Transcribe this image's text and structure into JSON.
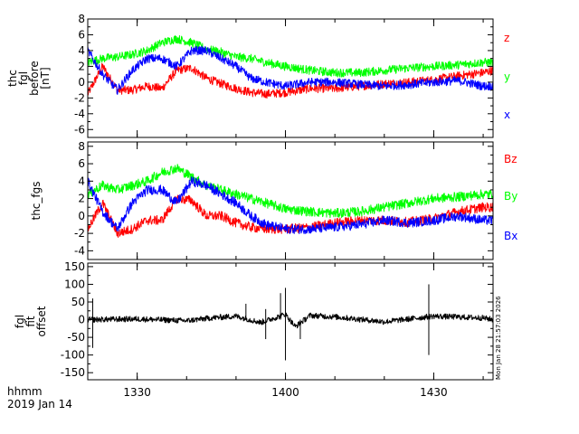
{
  "footer": {
    "line1": "hhmm",
    "line2": "2019 Jan 14"
  },
  "timestamp": "Mon Jan 28 21:57:03 2026",
  "colors": {
    "red": "#ff0000",
    "green": "#00ff00",
    "blue": "#0000ff",
    "black": "#000000"
  },
  "chart_data": [
    {
      "type": "line",
      "panel": 1,
      "ylabel_lines": [
        "thc",
        "fgl",
        "before",
        "[nT]"
      ],
      "ylim": [
        -7,
        8
      ],
      "yticks": [
        -6,
        -4,
        -2,
        0,
        2,
        4,
        6,
        8
      ],
      "xlim": [
        "13:20",
        "14:42"
      ],
      "xticks": [
        "1330",
        "1400",
        "1430"
      ],
      "series": [
        {
          "name": "z",
          "color": "#ff0000",
          "x": [
            "13:20",
            "13:23",
            "13:26",
            "13:29",
            "13:32",
            "13:35",
            "13:38",
            "13:41",
            "13:44",
            "13:47",
            "13:50",
            "13:53",
            "13:56",
            "14:00",
            "14:05",
            "14:10",
            "14:15",
            "14:20",
            "14:25",
            "14:30",
            "14:35",
            "14:40",
            "14:42"
          ],
          "values": [
            -1.5,
            2.0,
            -1.0,
            -1.0,
            -0.5,
            -0.8,
            1.5,
            1.8,
            0.5,
            -0.2,
            -0.8,
            -1.3,
            -1.5,
            -1.3,
            -0.8,
            -0.8,
            -0.5,
            -0.2,
            0.0,
            0.3,
            0.8,
            1.2,
            1.5
          ]
        },
        {
          "name": "y",
          "color": "#00ff00",
          "x": [
            "13:20",
            "13:23",
            "13:26",
            "13:29",
            "13:32",
            "13:35",
            "13:38",
            "13:41",
            "13:44",
            "13:47",
            "13:50",
            "13:53",
            "13:56",
            "14:00",
            "14:05",
            "14:10",
            "14:15",
            "14:20",
            "14:25",
            "14:30",
            "14:35",
            "14:40",
            "14:42"
          ],
          "values": [
            2.5,
            3.0,
            3.2,
            3.5,
            4.0,
            5.0,
            5.5,
            5.0,
            4.2,
            3.8,
            3.2,
            3.0,
            2.5,
            2.0,
            1.5,
            1.2,
            1.2,
            1.5,
            1.8,
            2.0,
            2.2,
            2.5,
            2.5
          ]
        },
        {
          "name": "x",
          "color": "#0000ff",
          "x": [
            "13:20",
            "13:23",
            "13:26",
            "13:29",
            "13:32",
            "13:35",
            "13:38",
            "13:41",
            "13:44",
            "13:47",
            "13:50",
            "13:53",
            "13:56",
            "14:00",
            "14:05",
            "14:10",
            "14:15",
            "14:20",
            "14:25",
            "14:30",
            "14:35",
            "14:40",
            "14:42"
          ],
          "values": [
            4.0,
            1.0,
            -1.0,
            1.5,
            3.0,
            3.0,
            2.0,
            4.0,
            4.0,
            3.0,
            2.0,
            0.5,
            0.0,
            -0.5,
            0.0,
            0.0,
            -0.3,
            -0.5,
            -0.3,
            0.0,
            0.2,
            -0.5,
            -0.5
          ]
        }
      ]
    },
    {
      "type": "line",
      "panel": 2,
      "ylabel_lines": [
        "thc_fgs"
      ],
      "ylim": [
        -5,
        8.5
      ],
      "yticks": [
        -4,
        -2,
        0,
        2,
        4,
        6,
        8
      ],
      "xlim": [
        "13:20",
        "14:42"
      ],
      "xticks": [
        "1330",
        "1400",
        "1430"
      ],
      "series": [
        {
          "name": "Bz",
          "color": "#ff0000",
          "x": [
            "13:20",
            "13:23",
            "13:26",
            "13:29",
            "13:32",
            "13:35",
            "13:38",
            "13:41",
            "13:44",
            "13:47",
            "13:50",
            "13:53",
            "13:56",
            "14:00",
            "14:05",
            "14:10",
            "14:15",
            "14:20",
            "14:25",
            "14:30",
            "14:35",
            "14:40",
            "14:42"
          ],
          "values": [
            -1.5,
            1.5,
            -2.0,
            -1.5,
            -0.5,
            -0.5,
            2.0,
            1.8,
            0.0,
            0.0,
            -0.8,
            -1.3,
            -1.5,
            -1.5,
            -1.3,
            -0.8,
            -0.5,
            -0.5,
            -0.7,
            -0.3,
            0.5,
            1.0,
            1.0
          ]
        },
        {
          "name": "By",
          "color": "#00ff00",
          "x": [
            "13:20",
            "13:23",
            "13:26",
            "13:29",
            "13:32",
            "13:35",
            "13:38",
            "13:41",
            "13:44",
            "13:47",
            "13:50",
            "13:53",
            "13:56",
            "14:00",
            "14:05",
            "14:10",
            "14:15",
            "14:20",
            "14:25",
            "14:30",
            "14:35",
            "14:40",
            "14:42"
          ],
          "values": [
            2.5,
            3.5,
            3.0,
            3.5,
            4.0,
            5.0,
            5.5,
            4.5,
            3.5,
            3.0,
            2.5,
            2.0,
            1.5,
            0.8,
            0.5,
            0.3,
            0.5,
            1.0,
            1.5,
            2.0,
            2.2,
            2.5,
            2.5
          ]
        },
        {
          "name": "Bx",
          "color": "#0000ff",
          "x": [
            "13:20",
            "13:23",
            "13:26",
            "13:29",
            "13:32",
            "13:35",
            "13:38",
            "13:41",
            "13:44",
            "13:47",
            "13:50",
            "13:53",
            "13:56",
            "14:00",
            "14:05",
            "14:10",
            "14:15",
            "14:20",
            "14:25",
            "14:30",
            "14:35",
            "14:40",
            "14:42"
          ],
          "values": [
            4.0,
            0.5,
            -1.5,
            1.5,
            3.0,
            3.0,
            1.5,
            4.0,
            3.5,
            2.5,
            1.5,
            0.0,
            -1.0,
            -1.5,
            -1.5,
            -1.3,
            -1.0,
            -0.5,
            -0.8,
            -0.5,
            0.0,
            -0.5,
            -0.5
          ]
        }
      ]
    },
    {
      "type": "line",
      "panel": 3,
      "ylabel_lines": [
        "fgl",
        "fit",
        "offset"
      ],
      "ylim": [
        -170,
        160
      ],
      "yticks": [
        -150,
        -100,
        -50,
        0,
        50,
        100,
        150
      ],
      "xlim": [
        "13:20",
        "14:42"
      ],
      "xticks": [
        "1330",
        "1400",
        "1430"
      ],
      "series": [
        {
          "color": "#000000",
          "x": [
            "13:20",
            "13:30",
            "13:40",
            "13:45",
            "13:50",
            "13:55",
            "14:00",
            "14:02",
            "14:05",
            "14:10",
            "14:20",
            "14:30",
            "14:40",
            "14:42"
          ],
          "values": [
            0,
            2,
            -3,
            5,
            10,
            -8,
            15,
            -20,
            12,
            8,
            -6,
            10,
            5,
            0
          ],
          "spikes": [
            {
              "x": "13:21",
              "value": 60
            },
            {
              "x": "13:21",
              "value": -80
            },
            {
              "x": "13:52",
              "value": 45
            },
            {
              "x": "13:56",
              "value": 30
            },
            {
              "x": "13:56",
              "value": -55
            },
            {
              "x": "13:59",
              "value": 75
            },
            {
              "x": "14:00",
              "value": 90
            },
            {
              "x": "14:00",
              "value": -115
            },
            {
              "x": "14:03",
              "value": -55
            },
            {
              "x": "14:29",
              "value": 100
            },
            {
              "x": "14:29",
              "value": -100
            }
          ]
        }
      ]
    }
  ]
}
